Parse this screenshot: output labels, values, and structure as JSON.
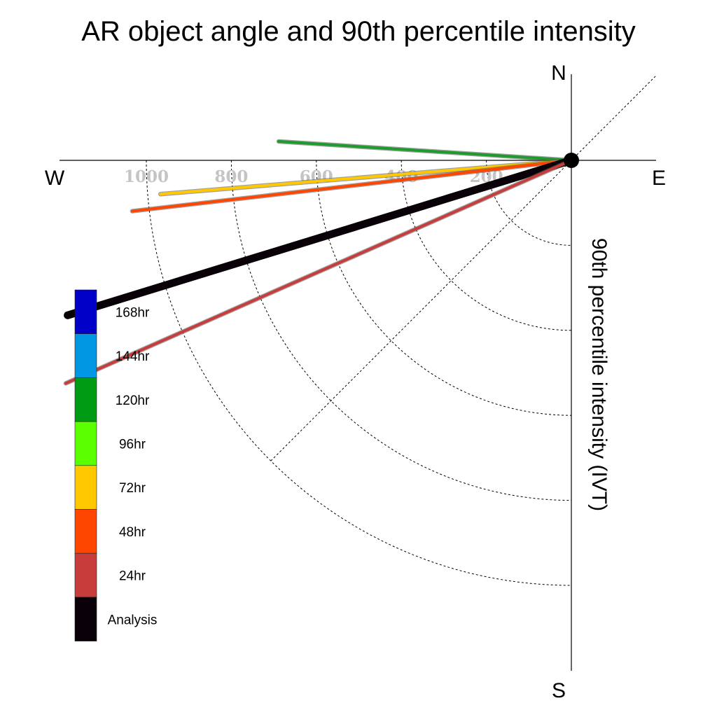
{
  "chart_data": {
    "type": "polar-vector",
    "title": "AR object angle and 90th percentile intensity",
    "ylabel": "90th percentile intensity (IVT)",
    "compass": {
      "north": "N",
      "south": "S",
      "east": "E",
      "west": "W"
    },
    "radial_range": [
      0,
      1200
    ],
    "radial_ticks": [
      200,
      400,
      600,
      800,
      1000
    ],
    "grid": true,
    "legend": [
      {
        "label": "168hr",
        "color": "#0000c8"
      },
      {
        "label": "144hr",
        "color": "#0096e1"
      },
      {
        "label": "120hr",
        "color": "#009b14"
      },
      {
        "label": "96hr",
        "color": "#5aff00"
      },
      {
        "label": "72hr",
        "color": "#ffc800"
      },
      {
        "label": "48hr",
        "color": "#ff4600"
      },
      {
        "label": "24hr",
        "color": "#c83c3c"
      },
      {
        "label": "Analysis",
        "color": "#0a0008"
      }
    ],
    "series": [
      {
        "name": "120hr",
        "color": "#1f9b2e",
        "direction_deg": 273.7,
        "intensity": 690
      },
      {
        "name": "72hr",
        "color": "#ffc800",
        "direction_deg": 265.3,
        "intensity": 970
      },
      {
        "name": "48hr",
        "color": "#ff4600",
        "direction_deg": 263.4,
        "intensity": 1040
      },
      {
        "name": "Analysis",
        "color": "#0a0008",
        "direction_deg": 252.9,
        "intensity": 1240
      },
      {
        "name": "24hr",
        "color": "#c83c3c",
        "direction_deg": 246.2,
        "intensity": 1300
      }
    ]
  }
}
